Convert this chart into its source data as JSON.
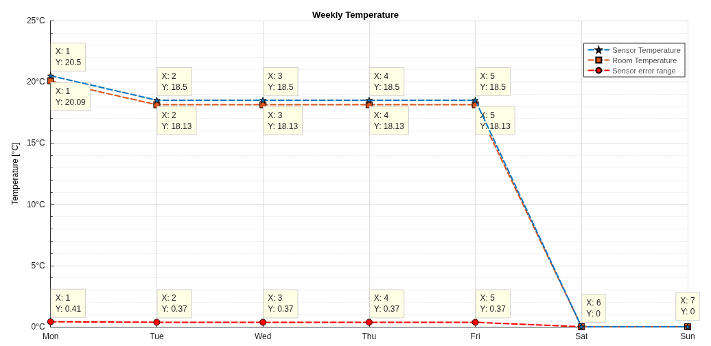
{
  "chart_data": {
    "type": "line",
    "title": "Weekly Temperature",
    "ylabel": "Temperature [°C]",
    "categories": [
      "Mon",
      "Tue",
      "Wed",
      "Thu",
      "Fri",
      "Sat",
      "Sun"
    ],
    "series": [
      {
        "name": "Sensor Temperature",
        "color": "#0072bd",
        "marker": "star",
        "values": [
          20.5,
          18.5,
          18.5,
          18.5,
          18.5,
          0,
          0
        ],
        "value_labels": [
          "X: 1\nY: 20.5",
          "X: 2\nY: 18.5",
          "X: 3\nY: 18.5",
          "X: 4\nY: 18.5",
          "X: 5\nY: 18.5",
          null,
          null
        ]
      },
      {
        "name": "Room Temperature",
        "color": "#d95319",
        "marker": "square",
        "values": [
          20.09,
          18.13,
          18.13,
          18.13,
          18.13,
          0,
          0
        ],
        "value_labels": [
          "X: 1\nY: 20.09",
          "X: 2\nY: 18.13",
          "X: 3\nY: 18.13",
          "X: 4\nY: 18.13",
          "X: 5\nY: 18.13",
          null,
          null
        ]
      },
      {
        "name": "Sensor error range",
        "color": "#ff0000",
        "marker": "circle",
        "values": [
          0.41,
          0.37,
          0.37,
          0.37,
          0.37,
          0,
          0
        ],
        "value_labels": [
          "X: 1\nY: 0.41",
          "X: 2\nY: 0.37",
          "X: 3\nY: 0.37",
          "X: 4\nY: 0.37",
          "X: 5\nY: 0.37",
          "X: 6\nY: 0",
          "X: 7\nY: 0"
        ]
      }
    ],
    "ylim": [
      0,
      25
    ],
    "yticks": [
      {
        "value": 0,
        "label": "0°C"
      },
      {
        "value": 5,
        "label": "5°C"
      },
      {
        "value": 10,
        "label": "10°C"
      },
      {
        "value": 15,
        "label": "15°C"
      },
      {
        "value": 20,
        "label": "20°C"
      },
      {
        "value": 25,
        "label": "25°C"
      }
    ],
    "grid": true,
    "legend": "top right",
    "line_style": "dashed"
  }
}
